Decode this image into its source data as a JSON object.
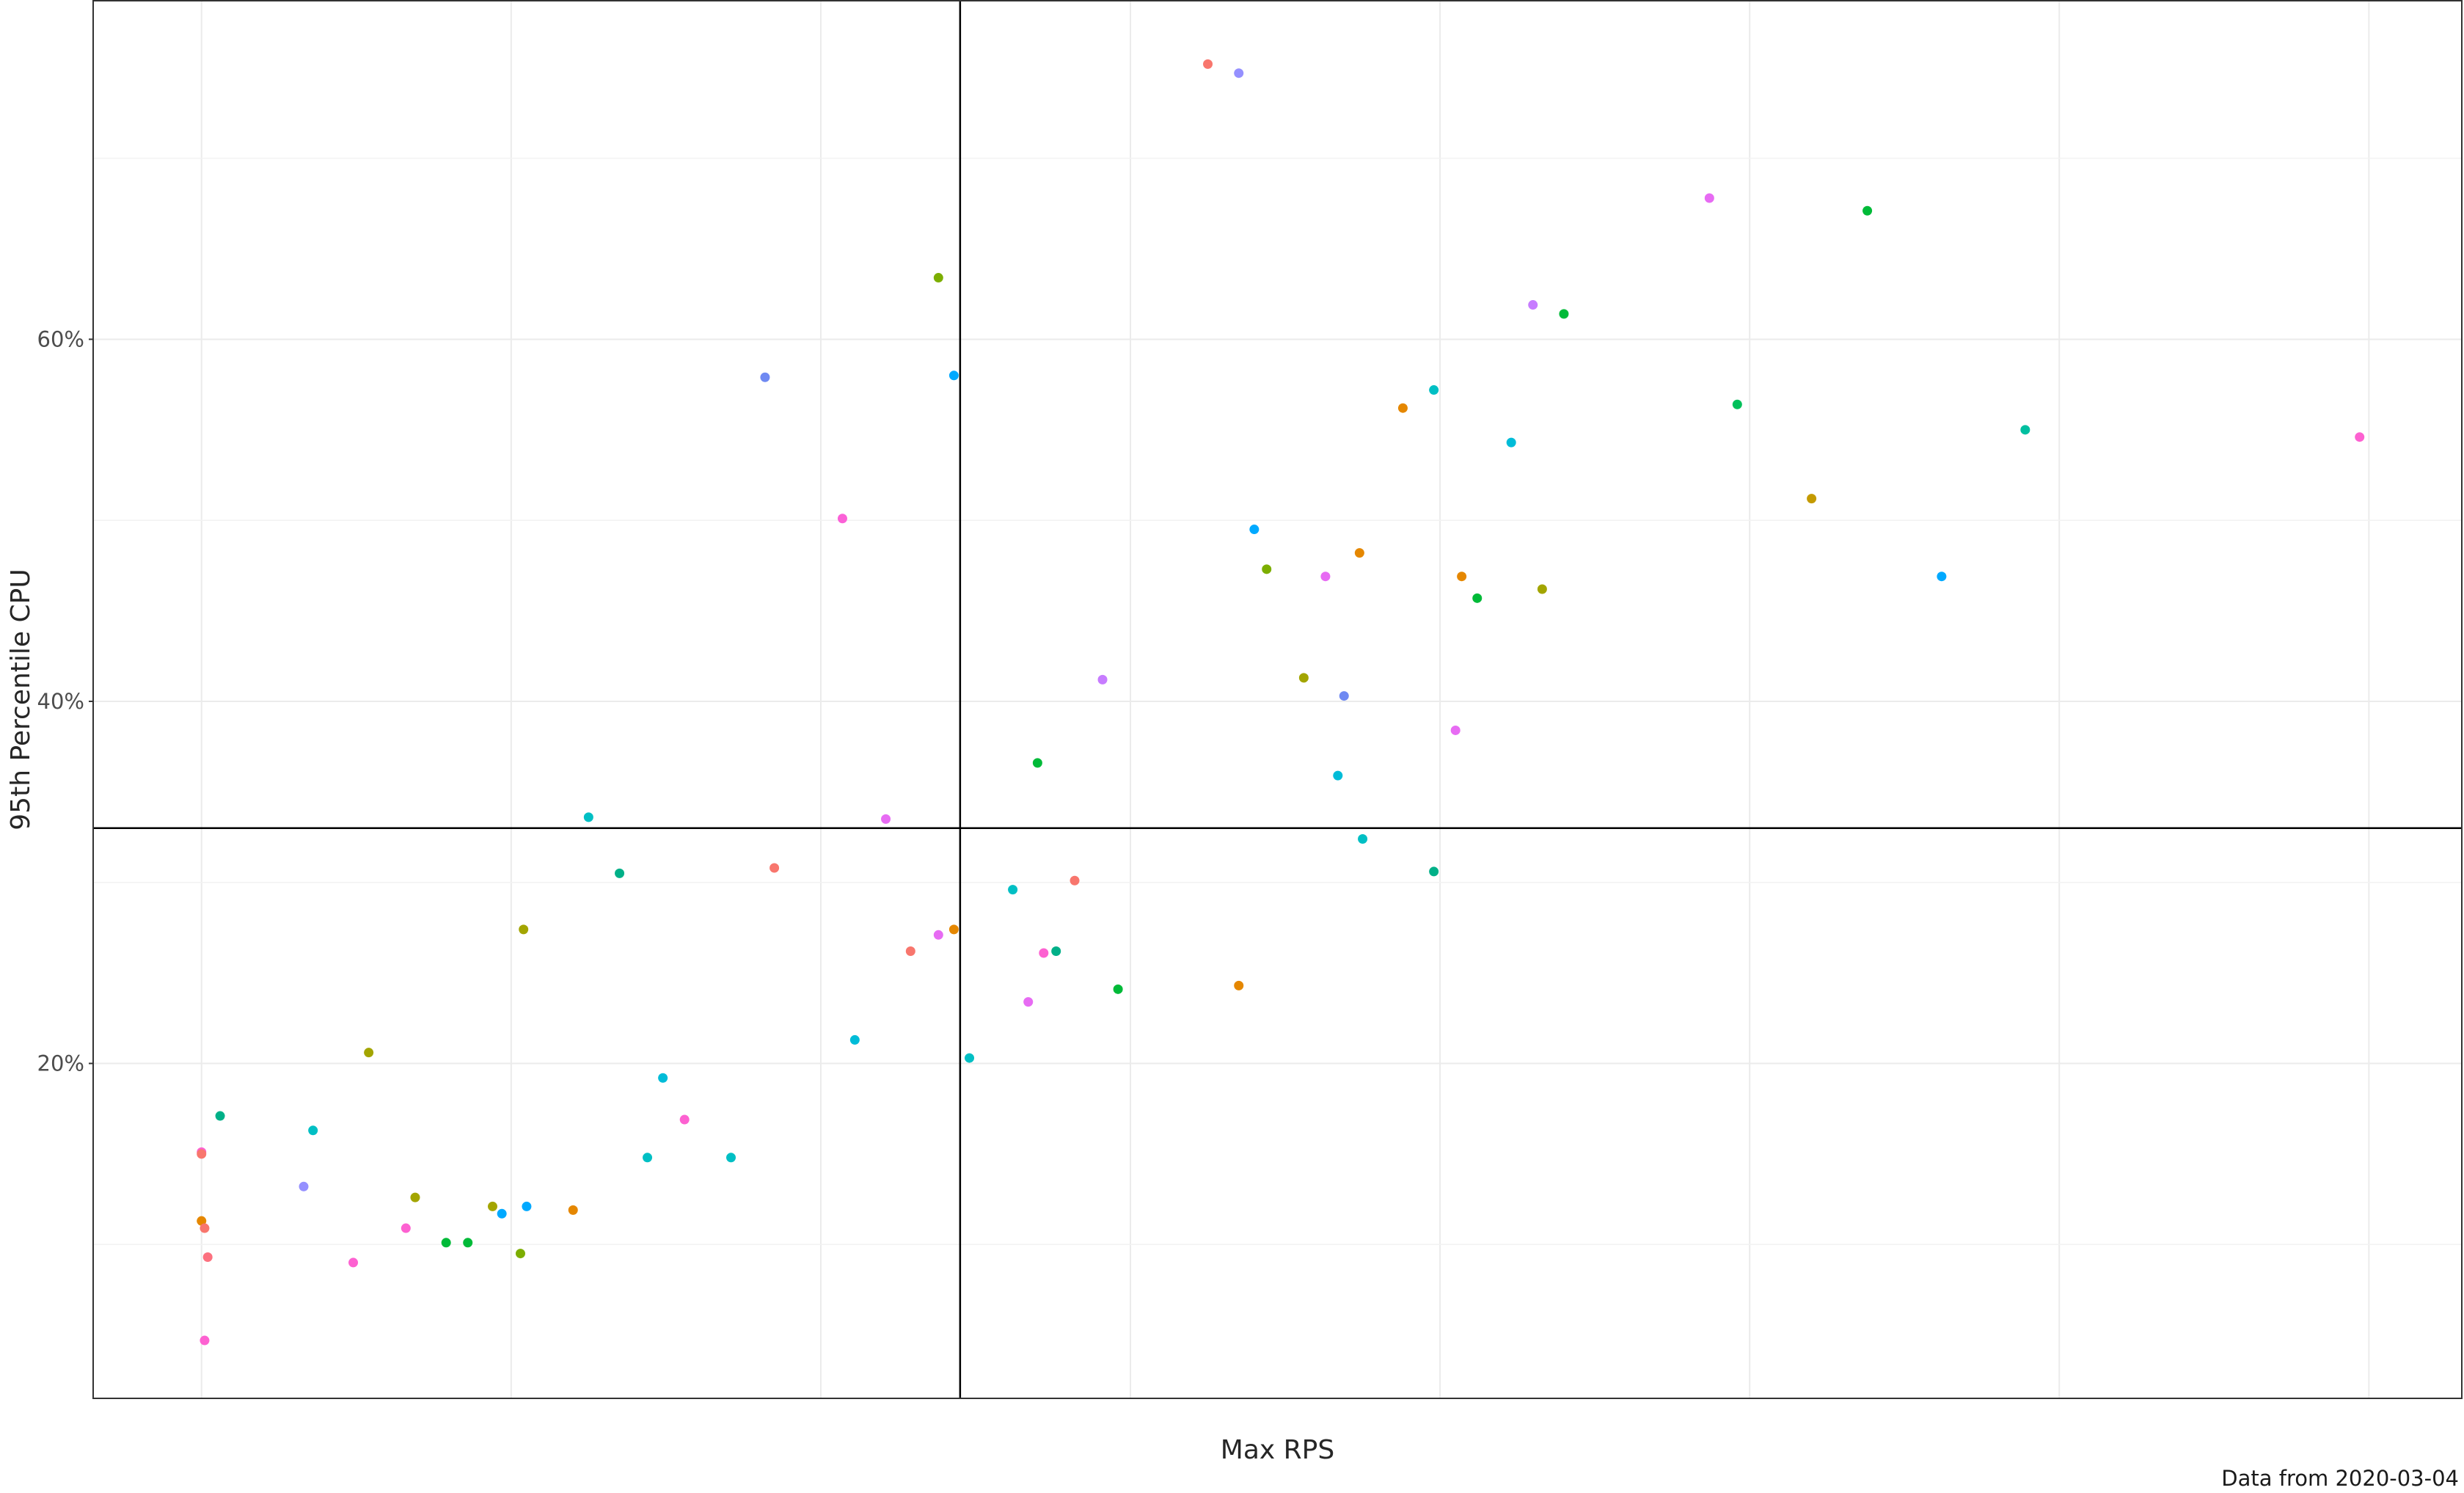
{
  "chart_data": {
    "type": "scatter",
    "xlabel": "Max RPS",
    "ylabel": "95th Percentile CPU",
    "caption": "Data from 2020-03-04",
    "y_ticks": [
      {
        "value": 20,
        "label": "20%"
      },
      {
        "value": 40,
        "label": "40%"
      },
      {
        "value": 60,
        "label": "60%"
      }
    ],
    "ylim": [
      1.5,
      78.7
    ],
    "xlim": [
      -0.35,
      7.3
    ],
    "x_gridlines": [
      0,
      1,
      2,
      3,
      4,
      5,
      6,
      7
    ],
    "y_minor_gridlines": [
      10,
      30,
      50,
      70
    ],
    "reference_lines": {
      "x": 2.45,
      "y": 33.0
    },
    "grid": true,
    "legend": "none",
    "points": [
      {
        "x": 3.25,
        "y": 75.2,
        "color": "#f8766d"
      },
      {
        "x": 3.35,
        "y": 74.7,
        "color": "#9590ff"
      },
      {
        "x": 2.38,
        "y": 63.4,
        "color": "#7cae00"
      },
      {
        "x": 1.82,
        "y": 57.9,
        "color": "#6f89f2"
      },
      {
        "x": 2.43,
        "y": 58.0,
        "color": "#00a9ff"
      },
      {
        "x": 2.07,
        "y": 50.1,
        "color": "#fb61d7"
      },
      {
        "x": 2.21,
        "y": 33.5,
        "color": "#e76bf3"
      },
      {
        "x": 1.25,
        "y": 33.6,
        "color": "#00bfc4"
      },
      {
        "x": 1.35,
        "y": 30.5,
        "color": "#00b088"
      },
      {
        "x": 1.85,
        "y": 30.8,
        "color": "#f8766d"
      },
      {
        "x": 1.04,
        "y": 27.4,
        "color": "#a3a500"
      },
      {
        "x": 2.29,
        "y": 26.2,
        "color": "#f8766d"
      },
      {
        "x": 2.38,
        "y": 27.1,
        "color": "#e76bf3"
      },
      {
        "x": 2.43,
        "y": 27.4,
        "color": "#e58700"
      },
      {
        "x": 2.11,
        "y": 21.3,
        "color": "#00bcd8"
      },
      {
        "x": 2.48,
        "y": 20.3,
        "color": "#00bfc4"
      },
      {
        "x": 0.54,
        "y": 20.6,
        "color": "#a3a500"
      },
      {
        "x": 1.49,
        "y": 19.2,
        "color": "#00bcd8"
      },
      {
        "x": 1.56,
        "y": 16.9,
        "color": "#fd61d1"
      },
      {
        "x": 1.44,
        "y": 14.8,
        "color": "#00bfc4"
      },
      {
        "x": 1.71,
        "y": 14.8,
        "color": "#00bfc4"
      },
      {
        "x": 0.06,
        "y": 17.1,
        "color": "#00b088"
      },
      {
        "x": 0.36,
        "y": 16.3,
        "color": "#00bfc4"
      },
      {
        "x": 0.0,
        "y": 15.1,
        "color": "#fd61d1"
      },
      {
        "x": 0.0,
        "y": 15.0,
        "color": "#f8766d"
      },
      {
        "x": 0.33,
        "y": 13.2,
        "color": "#9590ff"
      },
      {
        "x": 0.69,
        "y": 12.6,
        "color": "#a3a500"
      },
      {
        "x": 0.94,
        "y": 12.1,
        "color": "#a3a500"
      },
      {
        "x": 0.97,
        "y": 11.7,
        "color": "#00a9ff"
      },
      {
        "x": 1.05,
        "y": 12.1,
        "color": "#00a9ff"
      },
      {
        "x": 1.2,
        "y": 11.9,
        "color": "#e58700"
      },
      {
        "x": 0.66,
        "y": 10.9,
        "color": "#fd61d1"
      },
      {
        "x": 0.79,
        "y": 10.1,
        "color": "#00ba38"
      },
      {
        "x": 0.86,
        "y": 10.1,
        "color": "#00ba38"
      },
      {
        "x": 1.03,
        "y": 9.5,
        "color": "#7cae00"
      },
      {
        "x": 0.0,
        "y": 11.3,
        "color": "#e58700"
      },
      {
        "x": 0.01,
        "y": 10.9,
        "color": "#f8766d"
      },
      {
        "x": 0.02,
        "y": 9.3,
        "color": "#fc717f"
      },
      {
        "x": 0.49,
        "y": 9.0,
        "color": "#fd61d1"
      },
      {
        "x": 0.01,
        "y": 4.7,
        "color": "#fd61d1"
      },
      {
        "x": 2.7,
        "y": 36.6,
        "color": "#00ba38"
      },
      {
        "x": 2.91,
        "y": 41.2,
        "color": "#c77cff"
      },
      {
        "x": 3.4,
        "y": 49.5,
        "color": "#00a9ff"
      },
      {
        "x": 3.44,
        "y": 47.3,
        "color": "#7cae00"
      },
      {
        "x": 3.56,
        "y": 41.3,
        "color": "#a3a500"
      },
      {
        "x": 3.63,
        "y": 46.9,
        "color": "#e76bf3"
      },
      {
        "x": 3.74,
        "y": 48.2,
        "color": "#e58700"
      },
      {
        "x": 3.69,
        "y": 40.3,
        "color": "#6f89f2"
      },
      {
        "x": 3.67,
        "y": 35.9,
        "color": "#00bcd8"
      },
      {
        "x": 3.75,
        "y": 32.4,
        "color": "#00bfc4"
      },
      {
        "x": 3.88,
        "y": 56.2,
        "color": "#e58700"
      },
      {
        "x": 4.05,
        "y": 38.4,
        "color": "#e76bf3"
      },
      {
        "x": 3.98,
        "y": 57.2,
        "color": "#00bfc4"
      },
      {
        "x": 3.98,
        "y": 30.6,
        "color": "#00b088"
      },
      {
        "x": 4.07,
        "y": 46.9,
        "color": "#e58700"
      },
      {
        "x": 4.12,
        "y": 45.7,
        "color": "#00ba38"
      },
      {
        "x": 4.23,
        "y": 54.3,
        "color": "#00bcd8"
      },
      {
        "x": 4.3,
        "y": 61.9,
        "color": "#c77cff"
      },
      {
        "x": 4.33,
        "y": 46.2,
        "color": "#a3a500"
      },
      {
        "x": 4.4,
        "y": 61.4,
        "color": "#00ba38"
      },
      {
        "x": 2.62,
        "y": 29.6,
        "color": "#00bfc4"
      },
      {
        "x": 2.67,
        "y": 23.4,
        "color": "#e76bf3"
      },
      {
        "x": 2.72,
        "y": 26.1,
        "color": "#fd61d1"
      },
      {
        "x": 2.76,
        "y": 26.2,
        "color": "#00b088"
      },
      {
        "x": 2.82,
        "y": 30.1,
        "color": "#f8766d"
      },
      {
        "x": 2.96,
        "y": 24.1,
        "color": "#00ba38"
      },
      {
        "x": 3.35,
        "y": 24.3,
        "color": "#e58700"
      },
      {
        "x": 4.87,
        "y": 67.8,
        "color": "#e76bf3"
      },
      {
        "x": 5.38,
        "y": 67.1,
        "color": "#00ba38"
      },
      {
        "x": 4.96,
        "y": 56.4,
        "color": "#00c05a"
      },
      {
        "x": 5.2,
        "y": 51.2,
        "color": "#c49a00"
      },
      {
        "x": 5.62,
        "y": 46.9,
        "color": "#00a9ff"
      },
      {
        "x": 5.89,
        "y": 55.0,
        "color": "#00bfa0"
      },
      {
        "x": 6.97,
        "y": 54.6,
        "color": "#fd61d1"
      }
    ]
  }
}
